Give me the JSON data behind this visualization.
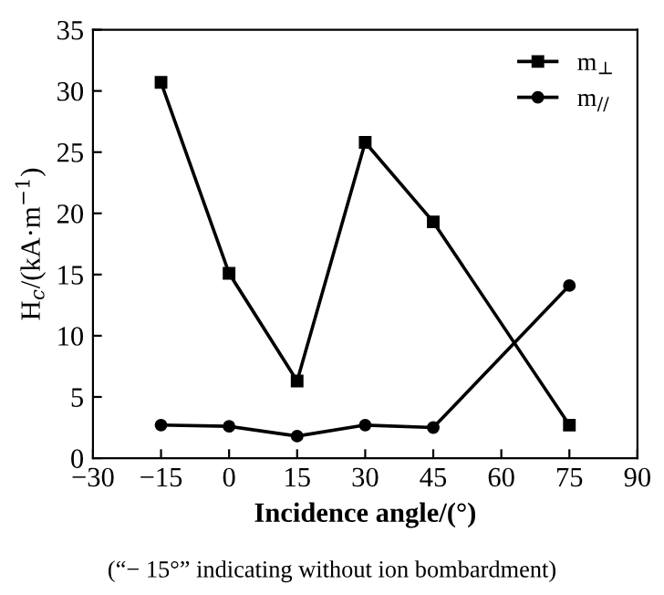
{
  "chart_data": {
    "type": "line",
    "xlabel": "Incidence angle/(°)",
    "ylabel": "H$_{c}$/(kA·m$^{−1}$)",
    "x": [
      -15,
      0,
      15,
      30,
      45,
      75
    ],
    "series": [
      {
        "name": "m$_{⊥}$",
        "color": "#000000",
        "marker": "square",
        "values": [
          30.7,
          15.1,
          6.3,
          25.8,
          19.3,
          2.7
        ]
      },
      {
        "name": "m$_{//}$",
        "color": "#000000",
        "marker": "circle",
        "values": [
          2.7,
          2.6,
          1.8,
          2.7,
          2.5,
          14.1
        ]
      }
    ],
    "xlim": [
      -30,
      90
    ],
    "xticks": [
      {
        "value": -30,
        "label": "−30"
      },
      {
        "value": -15,
        "label": "−15"
      },
      0,
      15,
      30,
      45,
      60,
      75,
      90
    ],
    "ylim": [
      0,
      35
    ],
    "yticks": [
      0,
      5,
      10,
      15,
      20,
      25,
      30,
      35
    ],
    "legend": "top right",
    "grid": false,
    "line_style": "solid",
    "annotations": [
      "(“− 15°” indicating without ion bombardment)"
    ]
  }
}
